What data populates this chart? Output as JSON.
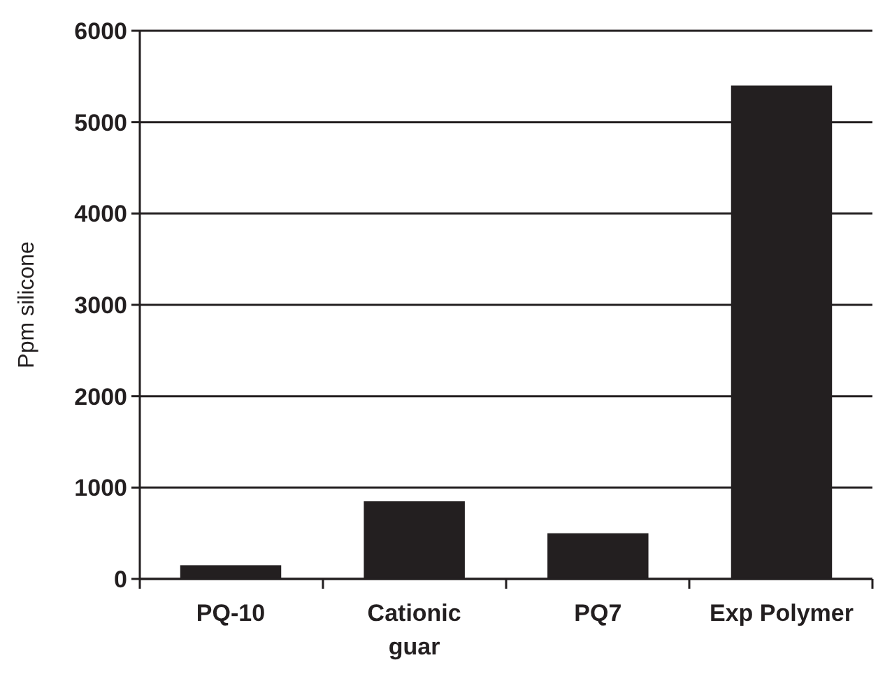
{
  "chart_data": {
    "type": "bar",
    "ylabel": "Ppm silicone",
    "categories": [
      "PQ-10",
      "Cationic guar",
      "PQ7",
      "Exp Polymer"
    ],
    "values": [
      150,
      850,
      500,
      5400
    ],
    "color": "#231f20",
    "ylim": [
      0,
      6000
    ],
    "yticks": [
      0,
      1000,
      2000,
      3000,
      4000,
      5000,
      6000
    ],
    "grid": "y"
  }
}
